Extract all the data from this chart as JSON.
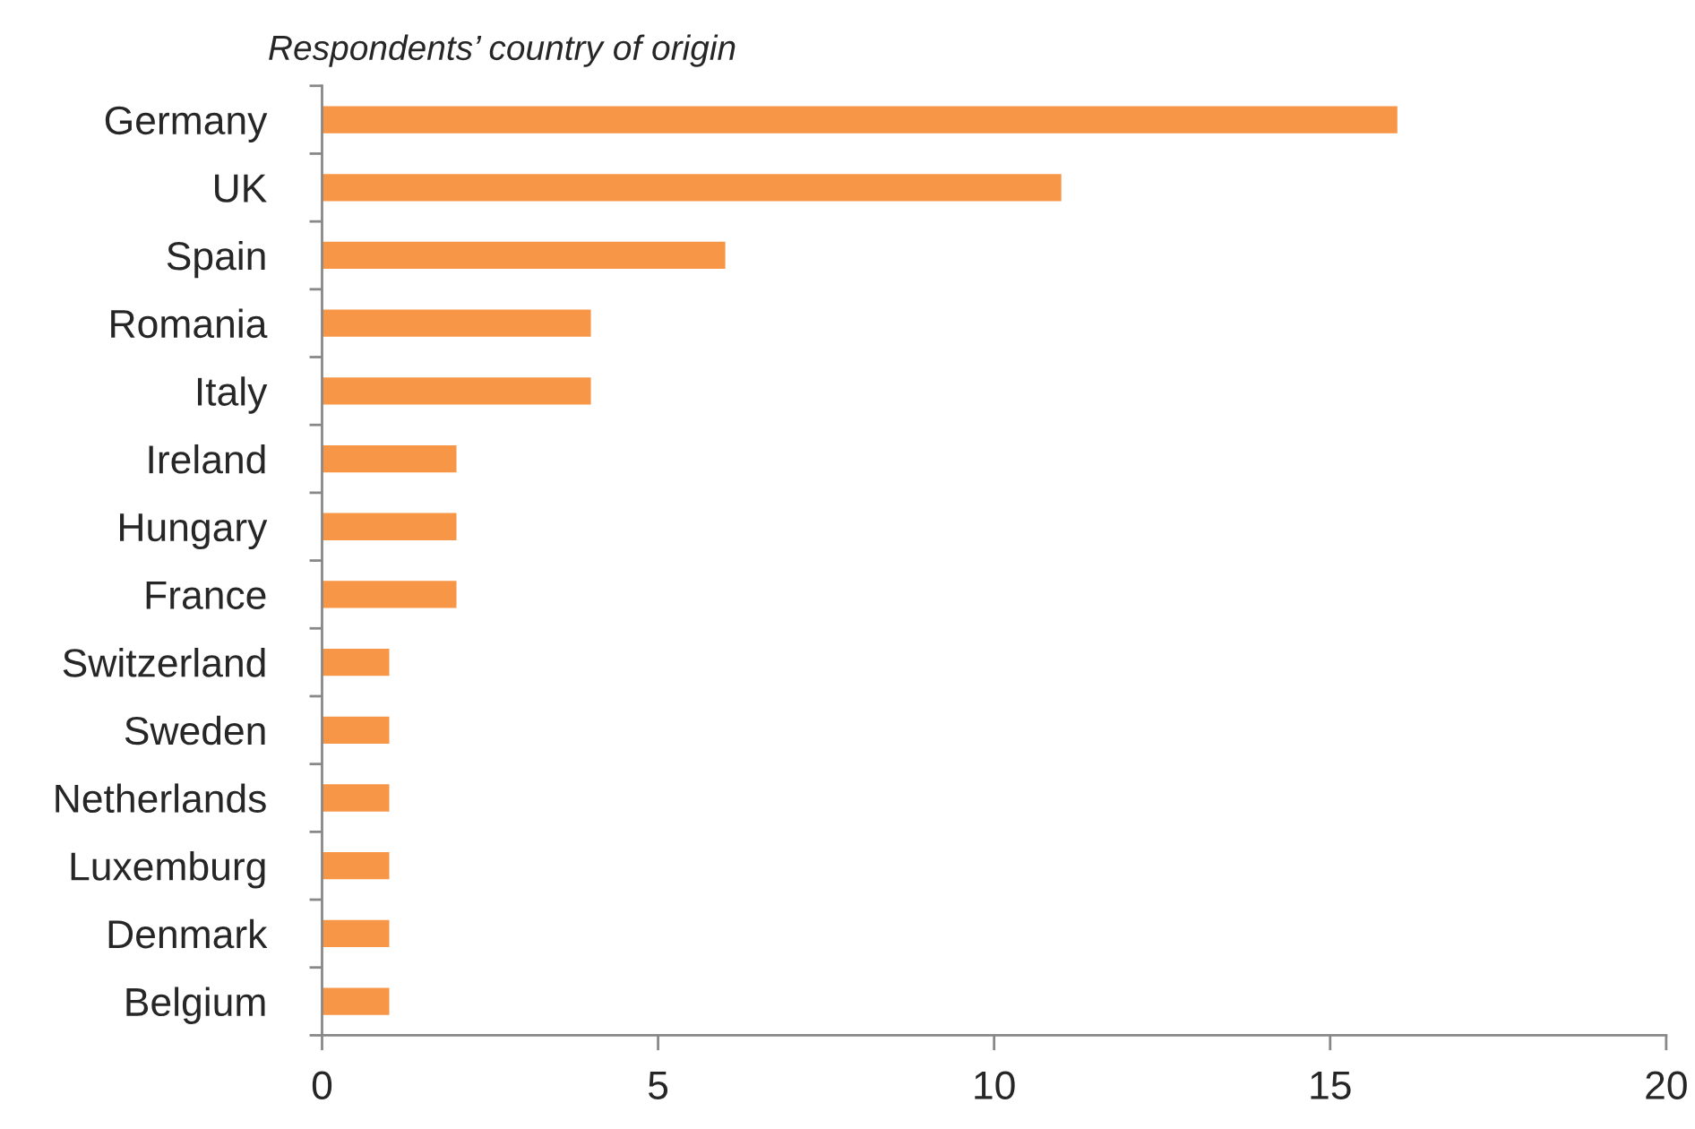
{
  "chart_data": {
    "type": "bar",
    "orientation": "horizontal",
    "title": "Respondents’ country of origin",
    "categories": [
      "Germany",
      "UK",
      "Spain",
      "Romania",
      "Italy",
      "Ireland",
      "Hungary",
      "France",
      "Switzerland",
      "Sweden",
      "Netherlands",
      "Luxemburg",
      "Denmark",
      "Belgium"
    ],
    "values": [
      16,
      11,
      6,
      4,
      4,
      2,
      2,
      2,
      1,
      1,
      1,
      1,
      1,
      1
    ],
    "color": "#f79646",
    "xlim": [
      0,
      20
    ],
    "xticks": [
      0,
      5,
      10,
      15,
      20
    ],
    "grid": false,
    "legend": false
  }
}
